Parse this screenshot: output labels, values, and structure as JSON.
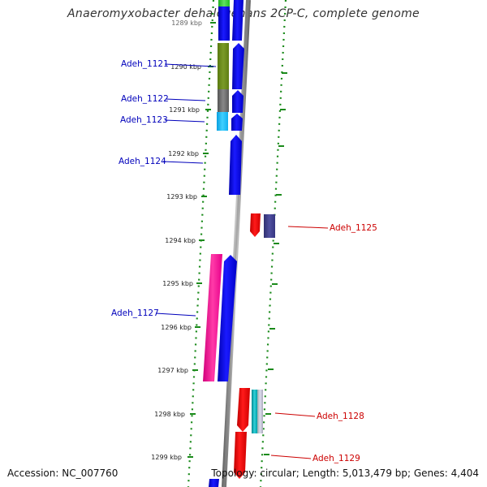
{
  "title": "Anaeromyxobacter dehalogenans 2CP-C, complete genome",
  "accession": "Accession: NC_007760",
  "topology": "Topology: circular; Length: 5,013,479 bp; Genes: 4,404",
  "ruler": {
    "ticks": [
      "1289 kbp",
      "1290 kbp",
      "1291 kbp",
      "1292 kbp",
      "1293 kbp",
      "1294 kbp",
      "1295 kbp",
      "1296 kbp",
      "1297 kbp",
      "1298 kbp",
      "1299 kbp"
    ]
  },
  "colors": {
    "forward_gene": "#0000ee",
    "reverse_gene": "#ee0000",
    "left_label": "#0000bb",
    "right_label": "#cc0000",
    "ruler": "#1a8a1a",
    "backbone": "#8a8a8a"
  },
  "genes": [
    {
      "label": "Adeh_1121",
      "strand": "forward",
      "start_kbp": 1289.98,
      "end_kbp": 1290.56
    },
    {
      "label": "Adeh_1122",
      "strand": "forward",
      "start_kbp": 1290.56,
      "end_kbp": 1291.08
    },
    {
      "label": "Adeh_1123",
      "strand": "forward",
      "start_kbp": 1291.08,
      "end_kbp": 1291.47
    },
    {
      "label": "Adeh_1124",
      "strand": "forward",
      "start_kbp": 1291.65,
      "end_kbp": 1293.0
    },
    {
      "label": "Adeh_1125",
      "strand": "reverse",
      "start_kbp": 1293.43,
      "end_kbp": 1293.93
    },
    {
      "label": "Adeh_1127",
      "strand": "forward",
      "start_kbp": 1294.4,
      "end_kbp": 1297.28
    },
    {
      "label": "Adeh_1128",
      "strand": "reverse",
      "start_kbp": 1297.43,
      "end_kbp": 1298.42
    },
    {
      "label": "Adeh_1129",
      "strand": "reverse",
      "start_kbp": 1298.43,
      "end_kbp": 1299.6
    }
  ]
}
